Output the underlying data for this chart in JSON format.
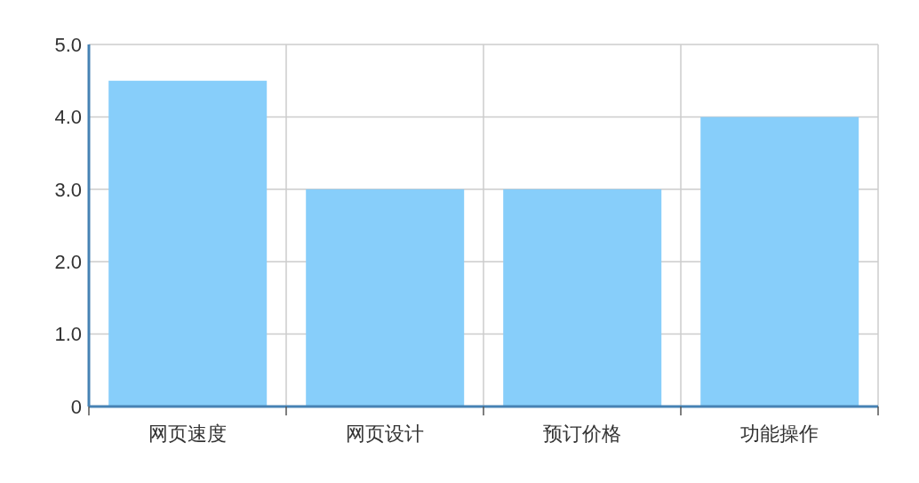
{
  "chart_data": {
    "type": "bar",
    "categories": [
      "网页速度",
      "网页设计",
      "预订价格",
      "功能操作"
    ],
    "values": [
      4.5,
      3,
      3,
      4
    ],
    "color": "#87cefa",
    "ylim": [
      0,
      5
    ],
    "yticks": [
      0,
      {
        "value": 1,
        "label": "1.0"
      },
      {
        "value": 2,
        "label": "2.0"
      },
      {
        "value": 3,
        "label": "3.0"
      },
      {
        "value": 4,
        "label": "4.0"
      },
      {
        "value": 5,
        "label": "5.0"
      }
    ],
    "grid": true
  }
}
